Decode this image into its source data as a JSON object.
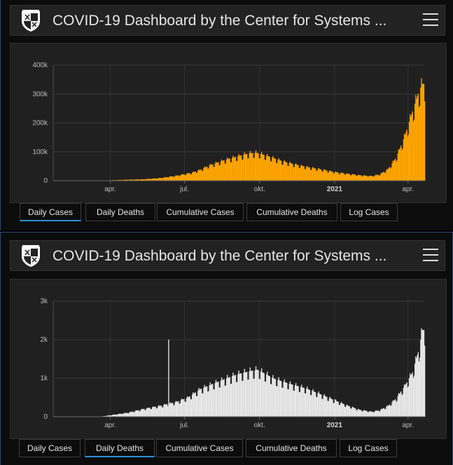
{
  "panels": [
    {
      "title": "COVID-19 Dashboard by the Center for Systems ...",
      "logo_icon": "jhu-shield-icon",
      "menu_icon": "hamburger-menu-icon",
      "tabs": [
        "Daily Cases",
        "Daily Deaths",
        "Cumulative Cases",
        "Cumulative Deaths",
        "Log Cases"
      ],
      "active_tab": "Daily Cases"
    },
    {
      "title": "COVID-19 Dashboard by the Center for Systems ...",
      "logo_icon": "jhu-shield-icon",
      "menu_icon": "hamburger-menu-icon",
      "tabs": [
        "Daily Cases",
        "Daily Deaths",
        "Cumulative Cases",
        "Cumulative Deaths",
        "Log Cases"
      ],
      "active_tab": "Daily Deaths"
    }
  ],
  "chart_data": [
    {
      "type": "bar",
      "title": "Daily Cases",
      "color": "#ffa500",
      "ylim": [
        0,
        400000
      ],
      "y_ticks": [
        0,
        100000,
        200000,
        300000,
        400000
      ],
      "y_tick_labels": [
        "0",
        "100k",
        "200k",
        "300k",
        "400k"
      ],
      "x_range_days": [
        0,
        455
      ],
      "x_ticks": [
        {
          "day": 70,
          "label": "apr."
        },
        {
          "day": 161,
          "label": "jul."
        },
        {
          "day": 253,
          "label": "okt."
        },
        {
          "day": 345,
          "label": "2021",
          "bold": true
        },
        {
          "day": 435,
          "label": "apr."
        }
      ],
      "series_knots": [
        [
          0,
          0
        ],
        [
          40,
          100
        ],
        [
          60,
          500
        ],
        [
          70,
          1500
        ],
        [
          90,
          3500
        ],
        [
          110,
          5000
        ],
        [
          130,
          9000
        ],
        [
          150,
          17000
        ],
        [
          170,
          28000
        ],
        [
          180,
          38000
        ],
        [
          190,
          52000
        ],
        [
          200,
          62000
        ],
        [
          210,
          72000
        ],
        [
          220,
          80000
        ],
        [
          230,
          88000
        ],
        [
          240,
          95000
        ],
        [
          248,
          97000
        ],
        [
          255,
          92000
        ],
        [
          265,
          83000
        ],
        [
          280,
          68000
        ],
        [
          295,
          57000
        ],
        [
          310,
          48000
        ],
        [
          330,
          38000
        ],
        [
          345,
          30000
        ],
        [
          360,
          24000
        ],
        [
          375,
          19000
        ],
        [
          390,
          16000
        ],
        [
          400,
          22000
        ],
        [
          410,
          40000
        ],
        [
          420,
          80000
        ],
        [
          430,
          150000
        ],
        [
          440,
          240000
        ],
        [
          448,
          310000
        ],
        [
          452,
          335000
        ]
      ]
    },
    {
      "type": "bar",
      "title": "Daily Deaths",
      "color": "#e8e8e8",
      "ylim": [
        0,
        3000
      ],
      "y_ticks": [
        0,
        1000,
        2000,
        3000
      ],
      "y_tick_labels": [
        "0",
        "1k",
        "2k",
        "3k"
      ],
      "x_range_days": [
        0,
        455
      ],
      "x_ticks": [
        {
          "day": 70,
          "label": "apr."
        },
        {
          "day": 161,
          "label": "jul."
        },
        {
          "day": 253,
          "label": "okt."
        },
        {
          "day": 345,
          "label": "2021",
          "bold": true
        },
        {
          "day": 435,
          "label": "apr."
        }
      ],
      "series_knots": [
        [
          0,
          0
        ],
        [
          50,
          0
        ],
        [
          60,
          10
        ],
        [
          70,
          40
        ],
        [
          90,
          100
        ],
        [
          110,
          200
        ],
        [
          130,
          280
        ],
        [
          150,
          380
        ],
        [
          165,
          500
        ],
        [
          180,
          720
        ],
        [
          195,
          850
        ],
        [
          210,
          980
        ],
        [
          225,
          1100
        ],
        [
          240,
          1180
        ],
        [
          250,
          1220
        ],
        [
          258,
          1130
        ],
        [
          270,
          990
        ],
        [
          290,
          850
        ],
        [
          310,
          730
        ],
        [
          330,
          560
        ],
        [
          345,
          420
        ],
        [
          360,
          290
        ],
        [
          375,
          180
        ],
        [
          390,
          130
        ],
        [
          400,
          170
        ],
        [
          410,
          280
        ],
        [
          420,
          470
        ],
        [
          430,
          780
        ],
        [
          440,
          1150
        ],
        [
          448,
          1750
        ],
        [
          452,
          2250
        ]
      ],
      "spikes": [
        {
          "day": 141,
          "value": 2000
        },
        {
          "day": 345,
          "value": 450
        }
      ]
    }
  ]
}
